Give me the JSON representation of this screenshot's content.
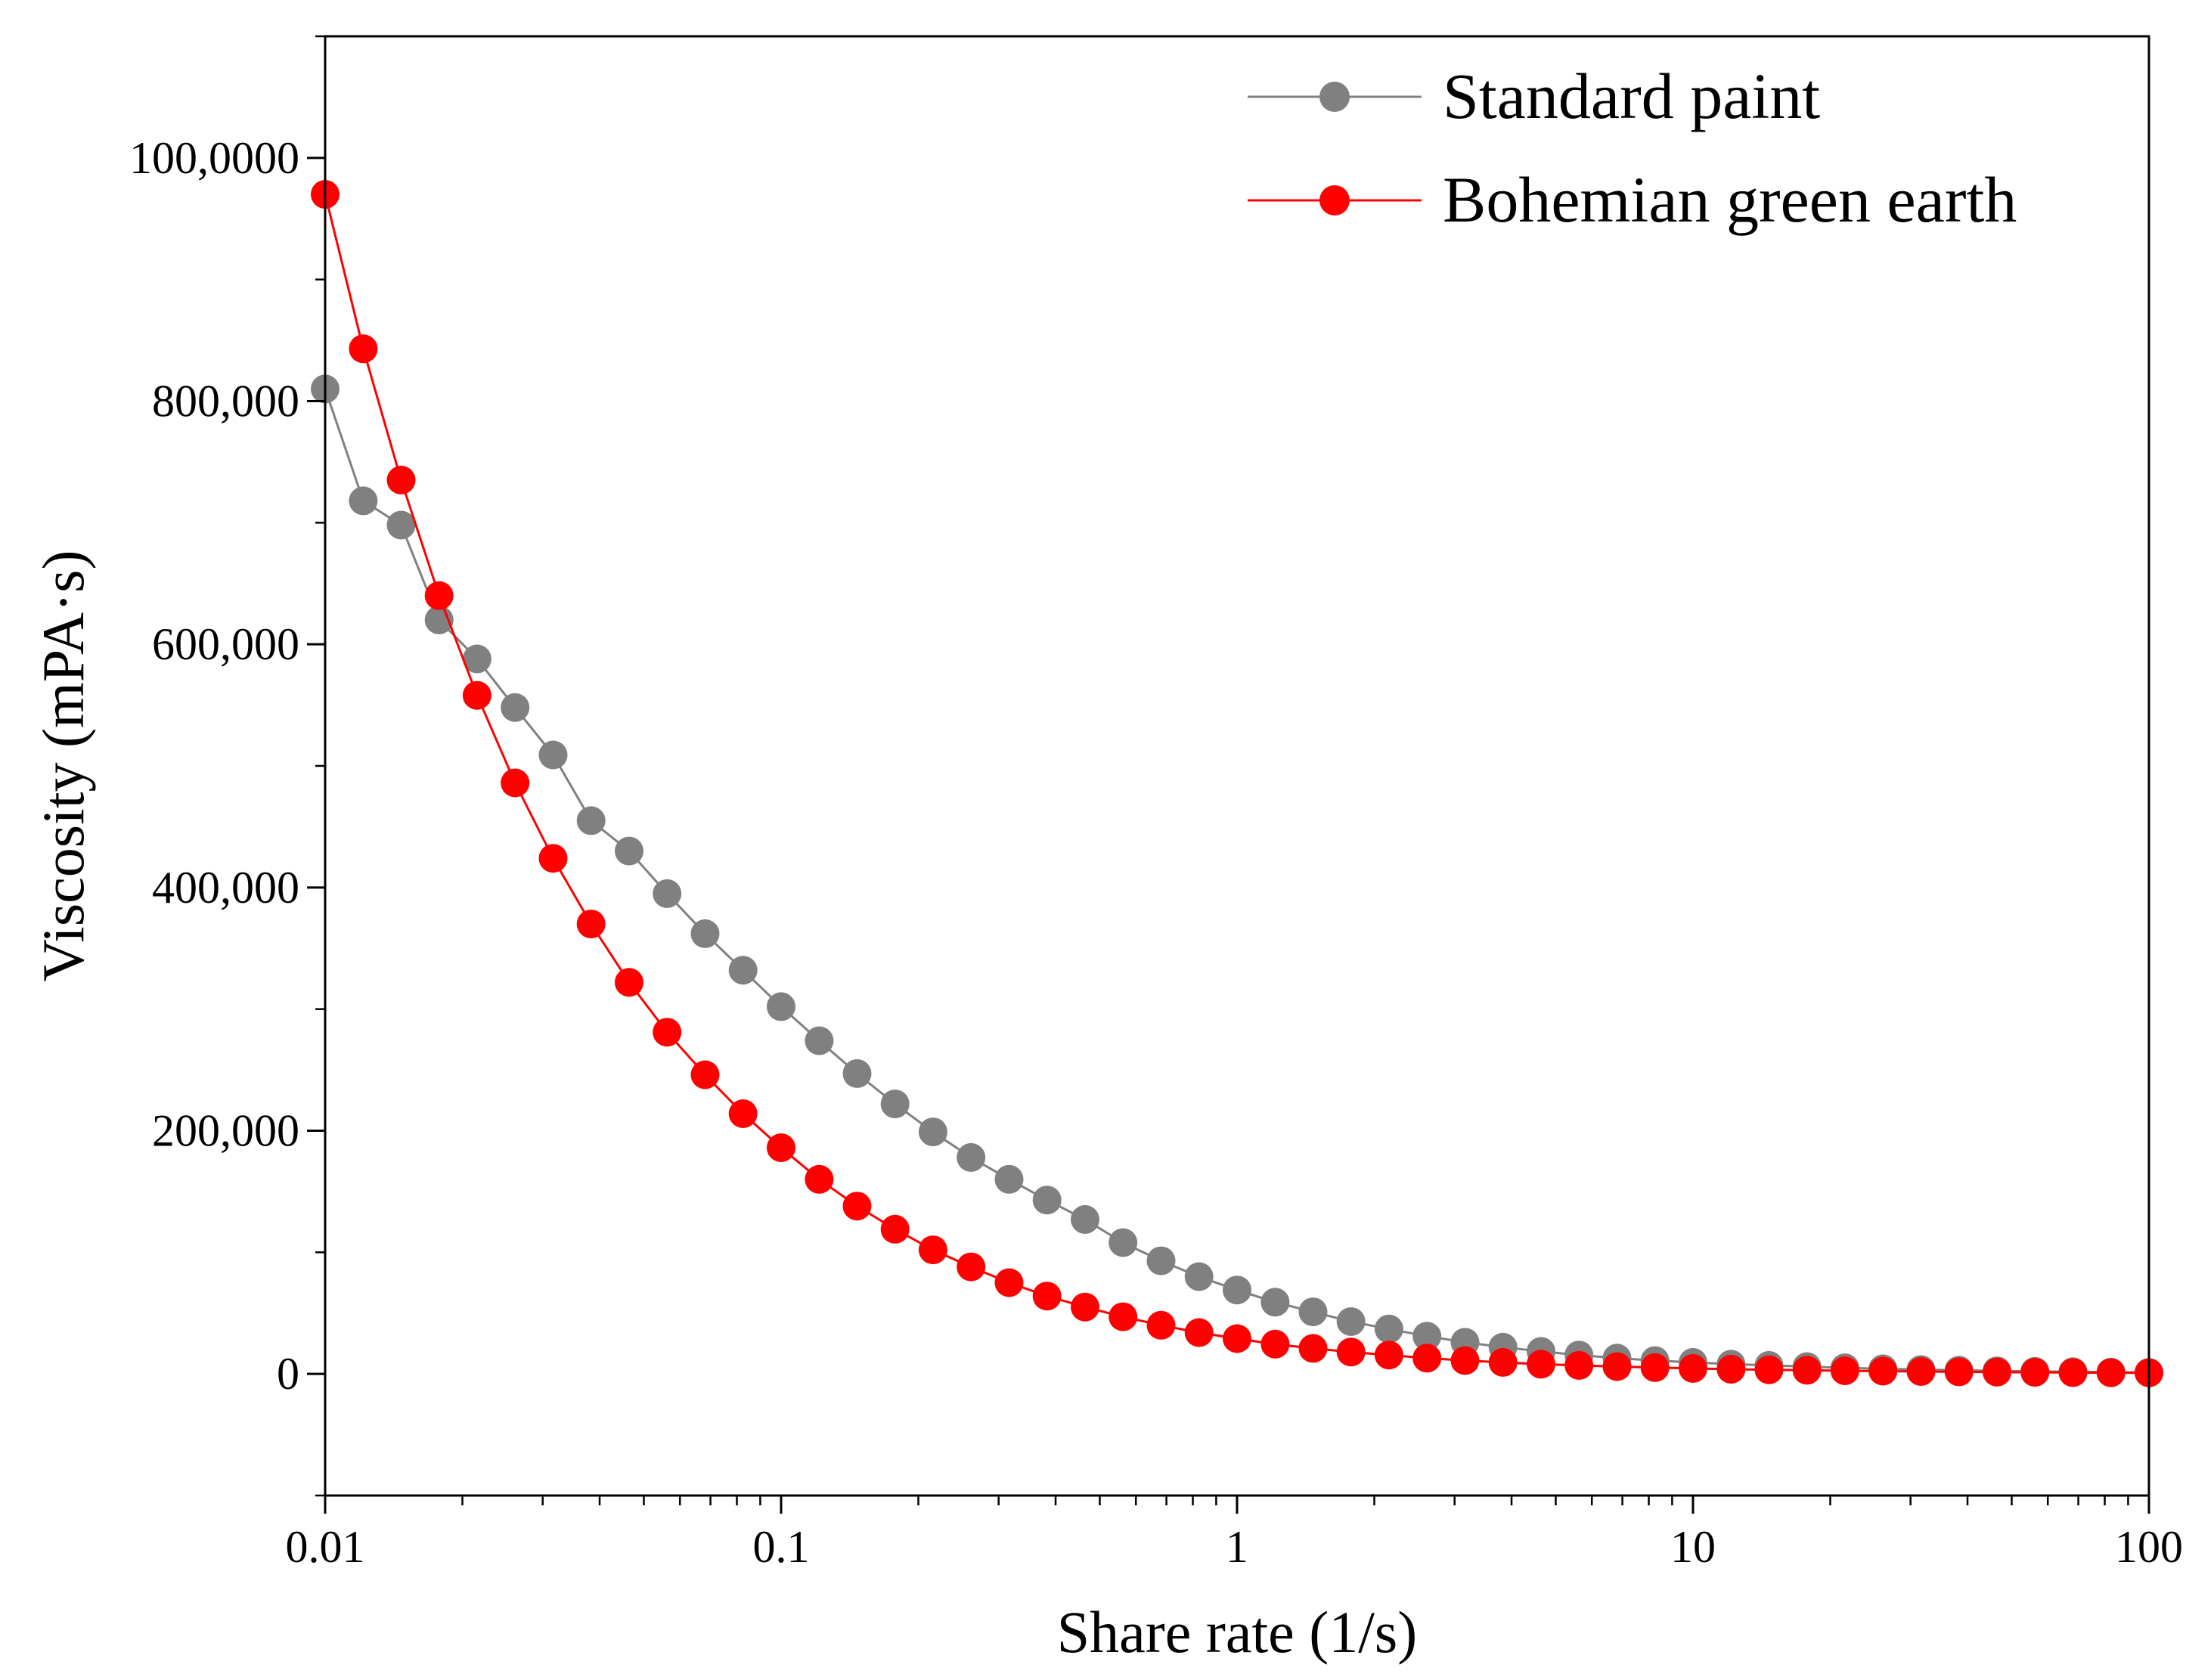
{
  "chart_data": {
    "type": "line",
    "title": "",
    "xlabel": "Share rate (1/s)",
    "ylabel": "Viscosity (mPA·s)",
    "x_scale": "log",
    "xlim": [
      0.01,
      100
    ],
    "ylim": [
      -100000,
      1100000
    ],
    "x_ticks": [
      {
        "value": 0.01,
        "label": "0.01"
      },
      {
        "value": 0.1,
        "label": "0.1"
      },
      {
        "value": 1,
        "label": "1"
      },
      {
        "value": 10,
        "label": "10"
      },
      {
        "value": 100,
        "label": "100"
      }
    ],
    "y_ticks": [
      {
        "value": 0,
        "label": "0"
      },
      {
        "value": 200000,
        "label": "200,000"
      },
      {
        "value": 400000,
        "label": "400,000"
      },
      {
        "value": 600000,
        "label": "600,000"
      },
      {
        "value": 800000,
        "label": "800,000"
      },
      {
        "value": 1000000,
        "label": "100,0000"
      }
    ],
    "grid": false,
    "legend_position": "top-right",
    "x": [
      0.01,
      0.01212,
      0.01468,
      0.01778,
      0.02154,
      0.0261,
      0.03162,
      0.03831,
      0.04642,
      0.05623,
      0.06813,
      0.08254,
      0.1,
      0.1212,
      0.1468,
      0.1778,
      0.2154,
      0.261,
      0.3162,
      0.3831,
      0.4642,
      0.5623,
      0.6813,
      0.8254,
      1,
      1.212,
      1.468,
      1.778,
      2.154,
      2.61,
      3.162,
      3.831,
      4.642,
      5.623,
      6.813,
      8.254,
      10,
      12.12,
      14.68,
      17.78,
      21.54,
      26.1,
      31.62,
      38.31,
      46.42,
      56.23,
      68.13,
      82.54,
      100
    ],
    "series": [
      {
        "name": "Standard paint",
        "color": "#808080",
        "marker": "circle",
        "values": [
          810000,
          718000,
          698000,
          620000,
          588000,
          548000,
          509000,
          455000,
          430000,
          395000,
          362000,
          332000,
          302000,
          274000,
          247000,
          222000,
          199000,
          178000,
          160000,
          143000,
          127000,
          108000,
          93000,
          80000,
          69000,
          59000,
          51000,
          43000,
          37000,
          31000,
          26000,
          22000,
          18500,
          15500,
          13000,
          11000,
          9500,
          8000,
          7000,
          6000,
          5000,
          4200,
          3600,
          3000,
          2500,
          2100,
          1800,
          1500,
          1200
        ]
      },
      {
        "name": "Bohemian green earth",
        "color": "#ff0000",
        "marker": "circle",
        "values": [
          970000,
          843000,
          735000,
          640000,
          558000,
          486000,
          424000,
          370000,
          322000,
          281000,
          246000,
          214000,
          186000,
          160000,
          138000,
          119000,
          102000,
          88000,
          75000,
          64000,
          55000,
          47000,
          40000,
          34000,
          29000,
          24500,
          21000,
          18000,
          15500,
          13000,
          11000,
          9500,
          8000,
          7000,
          6000,
          5200,
          4500,
          3900,
          3400,
          3000,
          2600,
          2300,
          2000,
          1700,
          1500,
          1300,
          1100,
          1000,
          900
        ]
      }
    ]
  }
}
